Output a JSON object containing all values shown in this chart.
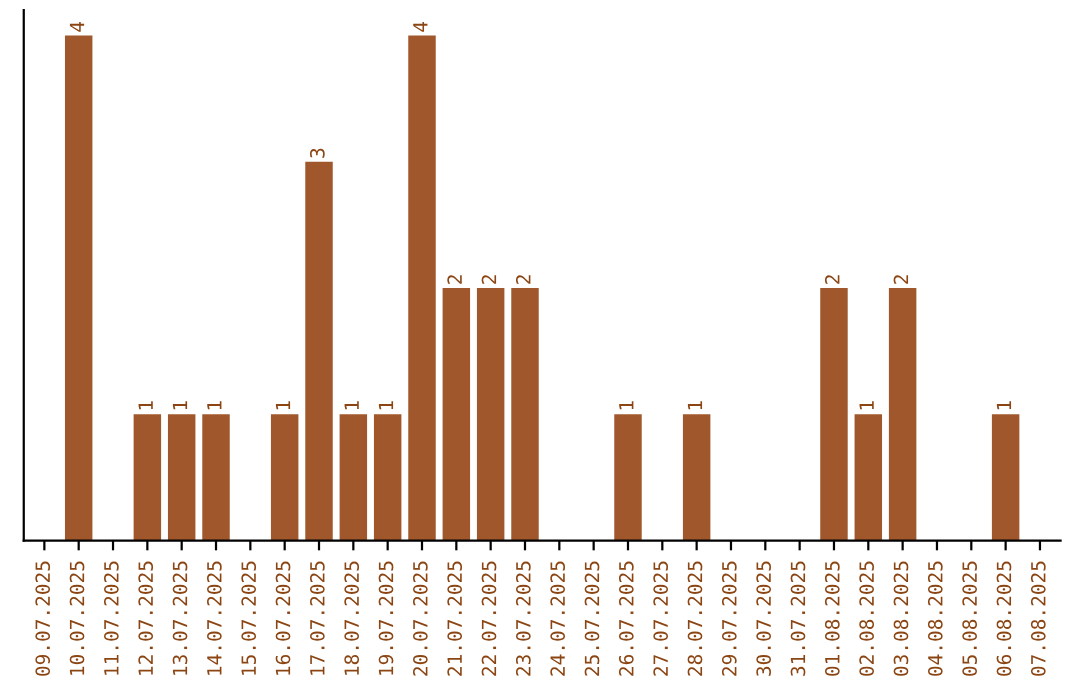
{
  "chart_data": {
    "type": "bar",
    "categories": [
      "09.07.2025",
      "10.07.2025",
      "11.07.2025",
      "12.07.2025",
      "13.07.2025",
      "14.07.2025",
      "15.07.2025",
      "16.07.2025",
      "17.07.2025",
      "18.07.2025",
      "19.07.2025",
      "20.07.2025",
      "21.07.2025",
      "22.07.2025",
      "23.07.2025",
      "24.07.2025",
      "25.07.2025",
      "26.07.2025",
      "27.07.2025",
      "28.07.2025",
      "29.07.2025",
      "30.07.2025",
      "31.07.2025",
      "01.08.2025",
      "02.08.2025",
      "03.08.2025",
      "04.08.2025",
      "05.08.2025",
      "06.08.2025",
      "07.08.2025"
    ],
    "values": [
      0,
      4,
      0,
      1,
      1,
      1,
      0,
      1,
      3,
      1,
      1,
      4,
      2,
      2,
      2,
      0,
      0,
      1,
      0,
      1,
      0,
      0,
      0,
      2,
      1,
      2,
      0,
      0,
      1,
      0
    ],
    "value_labels": [
      null,
      "4",
      null,
      "1",
      "1",
      "1",
      null,
      "1",
      "3",
      "1",
      "1",
      "4",
      "2",
      "2",
      "2",
      null,
      null,
      "1",
      null,
      "1",
      null,
      null,
      null,
      "2",
      "1",
      "2",
      null,
      null,
      "1",
      null
    ],
    "color": "#a0572b",
    "ylim": [
      0,
      4.2
    ],
    "tick_labels": "x",
    "grid": false,
    "legend": false
  }
}
